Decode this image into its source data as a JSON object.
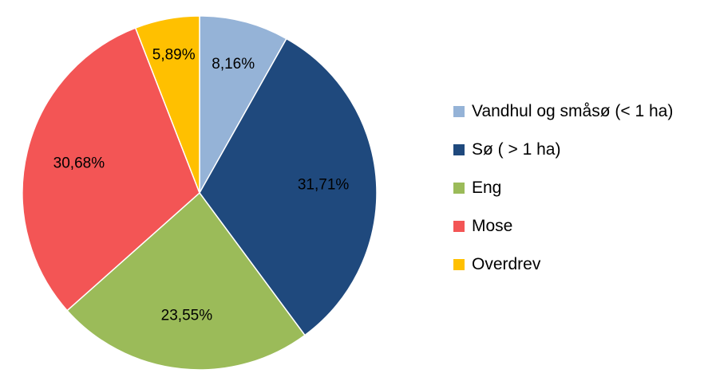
{
  "chart_data": {
    "type": "pie",
    "title": "",
    "start_angle_deg": 0,
    "direction": "clockwise",
    "legend_position": "right",
    "slices": [
      {
        "label": "Vandhul og småsø (< 1 ha)",
        "value": 8.16,
        "display": "8,16%",
        "color": "#95B3D7"
      },
      {
        "label": "Sø ( > 1 ha)",
        "value": 31.71,
        "display": "31,71%",
        "color": "#1F497D"
      },
      {
        "label": "Eng",
        "value": 23.55,
        "display": "23,55%",
        "color": "#9BBB59"
      },
      {
        "label": "Mose",
        "value": 30.68,
        "display": "30,68%",
        "color": "#F35555"
      },
      {
        "label": "Overdrev",
        "value": 5.89,
        "display": "5,89%",
        "color": "#FFC000"
      }
    ]
  }
}
